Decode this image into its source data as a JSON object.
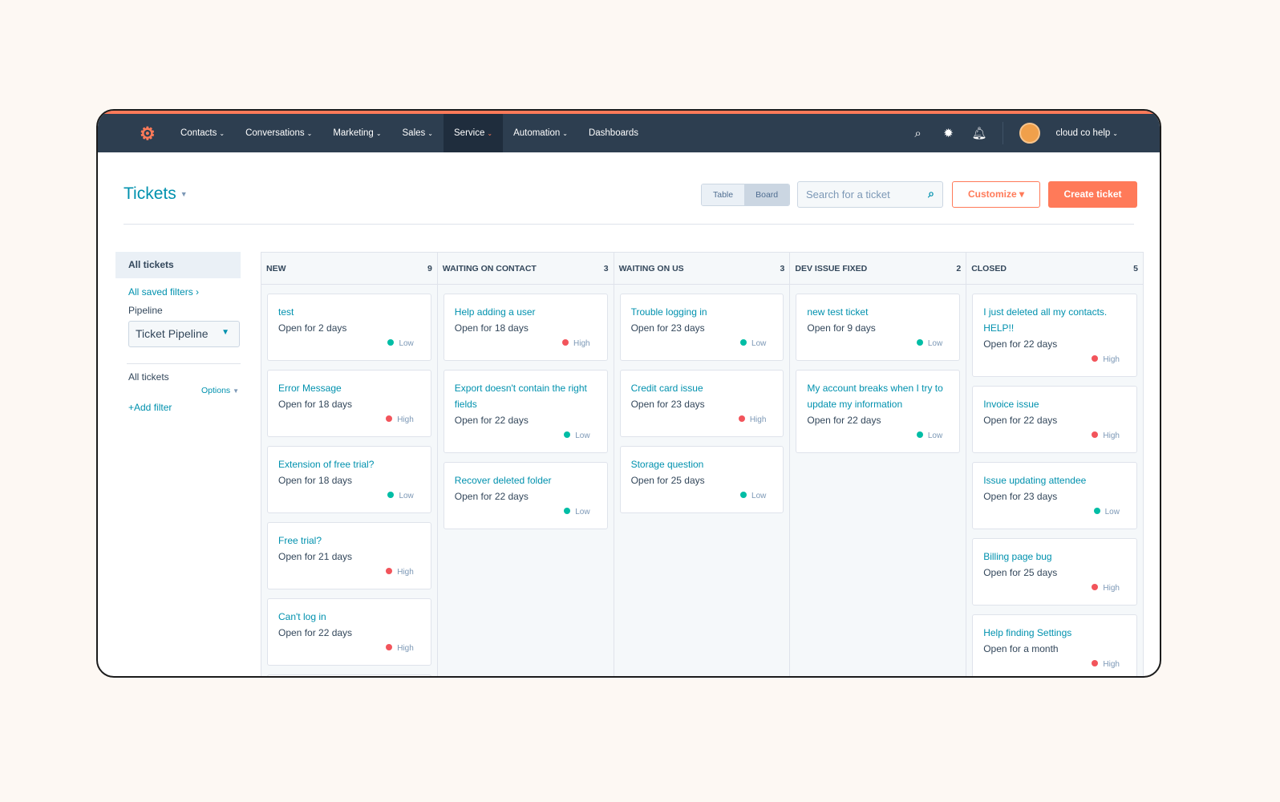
{
  "nav": {
    "items": [
      "Contacts",
      "Conversations",
      "Marketing",
      "Sales",
      "Service",
      "Automation",
      "Dashboards"
    ],
    "active": "Service",
    "user": "cloud co help"
  },
  "header": {
    "title": "Tickets",
    "view_table": "Table",
    "view_board": "Board",
    "search_placeholder": "Search for a ticket",
    "customize": "Customize",
    "create": "Create ticket"
  },
  "sidebar": {
    "all_tickets": "All tickets",
    "saved_filters": "All saved filters",
    "pipeline_label": "Pipeline",
    "pipeline_value": "Ticket Pipeline",
    "filter_title": "All tickets",
    "options": "Options",
    "add_filter": "+Add filter"
  },
  "colors": {
    "accent": "#ff7a59",
    "link": "#0091ae",
    "nav": "#2d3e50",
    "low": "#00bda5",
    "high": "#f2545b"
  },
  "columns": [
    {
      "name": "NEW",
      "count": "9",
      "cards": [
        {
          "title": "test",
          "age": "Open for 2 days",
          "priority": "Low"
        },
        {
          "title": "Error Message",
          "age": "Open for 18 days",
          "priority": "High"
        },
        {
          "title": "Extension of free trial?",
          "age": "Open for 18 days",
          "priority": "Low"
        },
        {
          "title": "Free trial?",
          "age": "Open for 21 days",
          "priority": "High"
        },
        {
          "title": "Can't log in",
          "age": "Open for 22 days",
          "priority": "High"
        },
        {
          "title": "",
          "age": "",
          "priority": ""
        }
      ]
    },
    {
      "name": "WAITING ON CONTACT",
      "count": "3",
      "cards": [
        {
          "title": "Help adding a user",
          "age": "Open for 18 days",
          "priority": "High"
        },
        {
          "title": "Export doesn't contain the right fields",
          "age": "Open for 22 days",
          "priority": "Low"
        },
        {
          "title": "Recover deleted folder",
          "age": "Open for 22 days",
          "priority": "Low"
        }
      ]
    },
    {
      "name": "WAITING ON US",
      "count": "3",
      "cards": [
        {
          "title": "Trouble logging in",
          "age": "Open for 23 days",
          "priority": "Low"
        },
        {
          "title": "Credit card issue",
          "age": "Open for 23 days",
          "priority": "High"
        },
        {
          "title": "Storage question",
          "age": "Open for 25 days",
          "priority": "Low"
        }
      ]
    },
    {
      "name": "DEV ISSUE FIXED",
      "count": "2",
      "cards": [
        {
          "title": "new test ticket",
          "age": "Open for 9 days",
          "priority": "Low"
        },
        {
          "title": "My account breaks when I try to update my information",
          "age": "Open for 22 days",
          "priority": "Low"
        }
      ]
    },
    {
      "name": "CLOSED",
      "count": "5",
      "cards": [
        {
          "title": "I just deleted all my contacts. HELP!!",
          "age": "Open for 22 days",
          "priority": "High"
        },
        {
          "title": "Invoice issue",
          "age": "Open for 22 days",
          "priority": "High"
        },
        {
          "title": "Issue updating attendee",
          "age": "Open for 23 days",
          "priority": "Low"
        },
        {
          "title": "Billing page bug",
          "age": "Open for 25 days",
          "priority": "High"
        },
        {
          "title": "Help finding Settings",
          "age": "Open for a month",
          "priority": "High"
        }
      ]
    }
  ]
}
